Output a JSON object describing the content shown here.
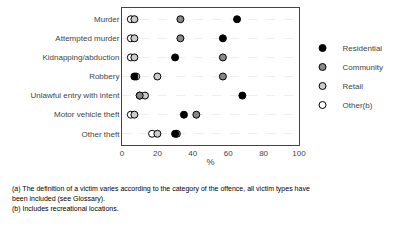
{
  "chart_data": {
    "type": "scatter",
    "marker": "circle",
    "categories": [
      "Murder",
      "Attempted murder",
      "Kidnapping/abduction",
      "Robbery",
      "Unlawful entry with intent",
      "Motor vehicle theft",
      "Other theft"
    ],
    "series": [
      {
        "name": "Residential",
        "color": "#000000",
        "values": [
          65,
          57,
          30,
          7,
          68,
          35,
          30
        ]
      },
      {
        "name": "Community",
        "color": "#888888",
        "values": [
          33,
          33,
          57,
          57,
          10,
          42,
          31
        ]
      },
      {
        "name": "Retail",
        "color": "#cccccc",
        "values": [
          7,
          7,
          7,
          20,
          13,
          7,
          20
        ]
      },
      {
        "name": "Other(b)",
        "color": "#ffffff",
        "values": [
          5,
          5,
          5,
          8,
          10,
          5,
          17
        ]
      }
    ],
    "xlabel": "%",
    "xlim": [
      0,
      100
    ],
    "xticks": [
      0,
      20,
      40,
      60,
      80,
      100
    ],
    "grid": true,
    "legend": "right",
    "annotations": [
      "(a) The definition of a victim varies according to the category of the offence, all victim types have",
      "been included (see Glossary).",
      "(b) Includes recreational locations."
    ]
  }
}
